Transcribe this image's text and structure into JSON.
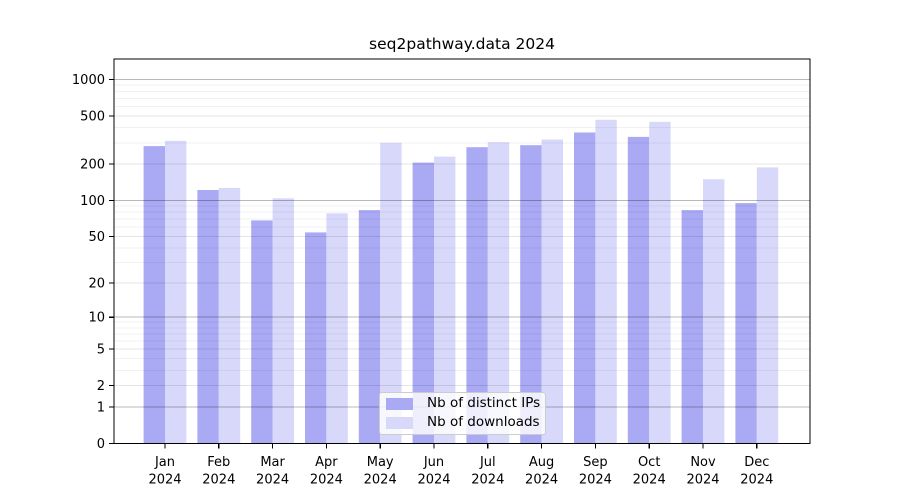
{
  "title": "seq2pathway.data 2024",
  "legend": {
    "items": [
      {
        "label": "Nb of distinct IPs",
        "color": "#a9a9f4"
      },
      {
        "label": "Nb of downloads",
        "color": "#d8d8fa"
      }
    ]
  },
  "chart_data": {
    "type": "bar",
    "title": "seq2pathway.data 2024",
    "categories": [
      "Jan\n2024",
      "Feb\n2024",
      "Mar\n2024",
      "Apr\n2024",
      "May\n2024",
      "Jun\n2024",
      "Jul\n2024",
      "Aug\n2024",
      "Sep\n2024",
      "Oct\n2024",
      "Nov\n2024",
      "Dec\n2024"
    ],
    "series": [
      {
        "name": "Nb of distinct IPs",
        "color": "#a9a9f4",
        "values": [
          282,
          122,
          68,
          54,
          83,
          206,
          276,
          287,
          365,
          336,
          83,
          95
        ]
      },
      {
        "name": "Nb of downloads",
        "color": "#d8d8fa",
        "values": [
          312,
          127,
          104,
          78,
          300,
          231,
          304,
          320,
          465,
          447,
          150,
          188
        ]
      }
    ],
    "xlabel": "",
    "ylabel": "",
    "y_axis": {
      "scale": "log1p",
      "tick_values": [
        0,
        1,
        2,
        5,
        10,
        20,
        50,
        100,
        200,
        500,
        1000
      ],
      "minor_tick_values": [
        3,
        4,
        6,
        7,
        8,
        9,
        30,
        40,
        60,
        70,
        80,
        90,
        300,
        400,
        600,
        700,
        800,
        900
      ],
      "range_top_value": 1470
    },
    "grid": true,
    "legend_position": "bottom-center",
    "bar_colors": {
      "distinct_ips": "#a9a9f4",
      "downloads": "#d8d8fa"
    }
  }
}
